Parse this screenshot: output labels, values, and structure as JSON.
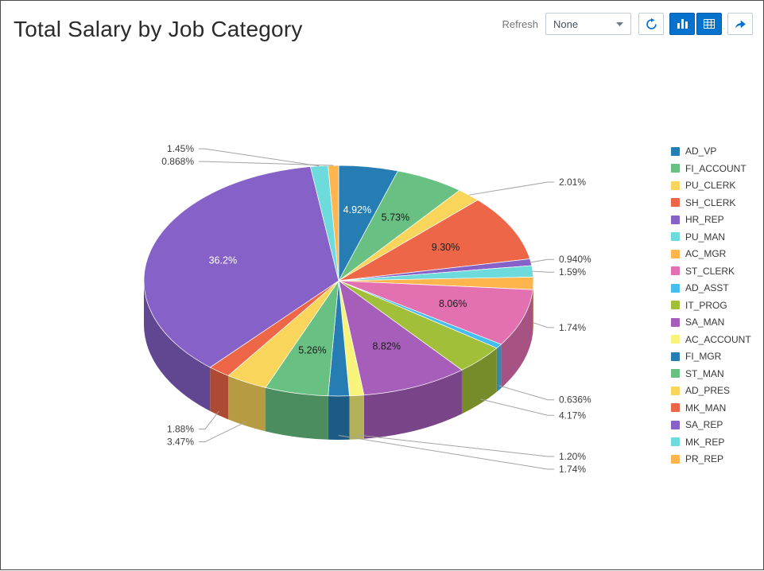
{
  "header": {
    "title": "Total Salary by Job Category",
    "refresh_label": "Refresh",
    "refresh_interval_value": "None",
    "accent_color": "#0572ce",
    "toolbar_buttons": [
      {
        "name": "refresh",
        "icon": "refresh-icon",
        "active": false
      },
      {
        "name": "chart-view",
        "icon": "bar-chart-icon",
        "active": true
      },
      {
        "name": "data-view",
        "icon": "table-icon",
        "active": true
      },
      {
        "name": "go",
        "icon": "share-arrow-icon",
        "active": false
      }
    ]
  },
  "chart_data": {
    "type": "pie",
    "three_d": true,
    "title": "Total Salary by Job Category",
    "legend_position": "right",
    "values_are": "percent",
    "series": [
      {
        "label": "AD_VP",
        "value": 4.92,
        "display": "4.92%",
        "color": "#267db3"
      },
      {
        "label": "FI_ACCOUNT",
        "value": 5.73,
        "display": "5.73%",
        "color": "#68c182"
      },
      {
        "label": "PU_CLERK",
        "value": 2.01,
        "display": "2.01%",
        "color": "#fad55c"
      },
      {
        "label": "SH_CLERK",
        "value": 9.3,
        "display": "9.30%",
        "color": "#ed6647"
      },
      {
        "label": "HR_REP",
        "value": 0.94,
        "display": "0.940%",
        "color": "#8561c8"
      },
      {
        "label": "PU_MAN",
        "value": 1.59,
        "display": "1.59%",
        "color": "#6ddbdb"
      },
      {
        "label": "AC_MGR",
        "value": 1.74,
        "display": "1.74%",
        "color": "#ffb54d"
      },
      {
        "label": "ST_CLERK",
        "value": 8.06,
        "display": "8.06%",
        "color": "#e371b2"
      },
      {
        "label": "AD_ASST",
        "value": 0.636,
        "display": "0.636%",
        "color": "#47bdef"
      },
      {
        "label": "IT_PROG",
        "value": 4.17,
        "display": "4.17%",
        "color": "#a2bf39"
      },
      {
        "label": "SA_MAN",
        "value": 8.82,
        "display": "8.82%",
        "color": "#a75dba"
      },
      {
        "label": "AC_ACCOUNT",
        "value": 1.2,
        "display": "1.20%",
        "color": "#f7f37b"
      },
      {
        "label": "FI_MGR",
        "value": 1.74,
        "display": "1.74%",
        "color": "#267db3"
      },
      {
        "label": "ST_MAN",
        "value": 5.26,
        "display": "5.26%",
        "color": "#68c182"
      },
      {
        "label": "AD_PRES",
        "value": 3.47,
        "display": "3.47%",
        "color": "#fad55c"
      },
      {
        "label": "MK_MAN",
        "value": 1.88,
        "display": "1.88%",
        "color": "#ed6647"
      },
      {
        "label": "SA_REP",
        "value": 36.2,
        "display": "36.2%",
        "color": "#8561c8"
      },
      {
        "label": "MK_REP",
        "value": 1.45,
        "display": "1.45%",
        "color": "#6ddbdb"
      },
      {
        "label": "PR_REP",
        "value": 0.868,
        "display": "0.868%",
        "color": "#ffb54d"
      }
    ]
  }
}
